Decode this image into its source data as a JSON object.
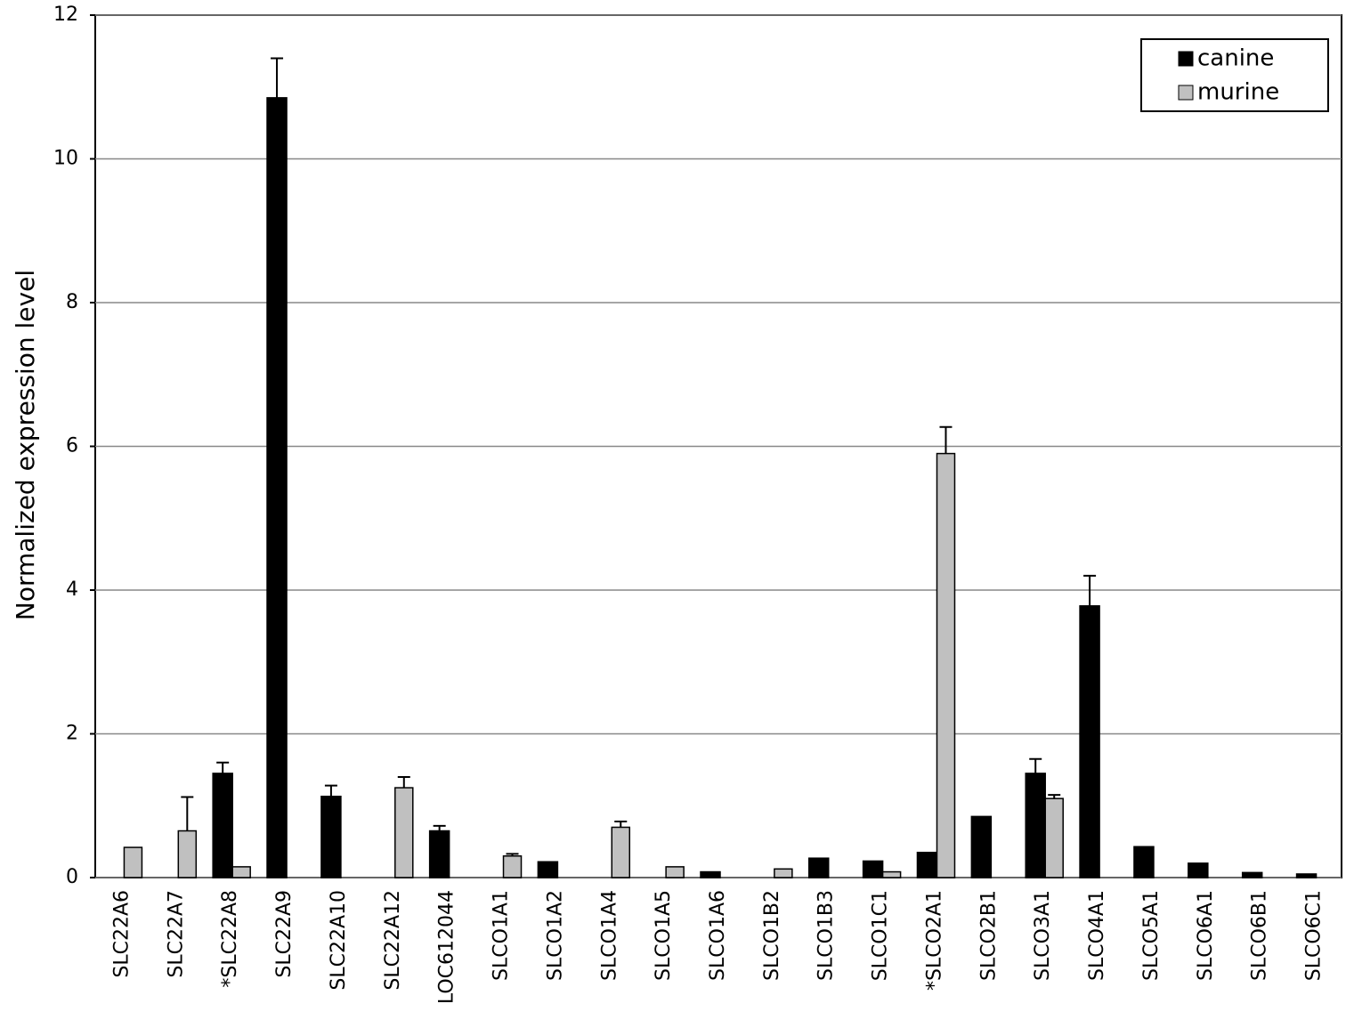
{
  "chart_data": {
    "type": "bar",
    "y_label": "Normalized  expression   level",
    "categories": [
      "SLC22A6",
      "SLC22A7",
      "*SLC22A8",
      "SLC22A9",
      "SLC22A10",
      "SLC22A12",
      "LOC612044",
      "SLCO1A1",
      "SLCO1A2",
      "SLCO1A4",
      "SLCO1A5",
      "SLCO1A6",
      "SLCO1B2",
      "SLCO1B3",
      "SLCO1C1",
      "*SLCO2A1",
      "SLCO2B1",
      "SLCO3A1",
      "SLCO4A1",
      "SLCO5A1",
      "SLCO6A1",
      "SLCO6B1",
      "SLCO6C1"
    ],
    "series": [
      {
        "name": "canine",
        "color": "#000000",
        "values": [
          null,
          null,
          1.45,
          10.85,
          1.13,
          null,
          0.65,
          null,
          0.22,
          null,
          null,
          0.08,
          null,
          0.27,
          0.23,
          0.35,
          0.85,
          1.45,
          3.78,
          0.43,
          0.2,
          0.07,
          0.05
        ],
        "errors": [
          null,
          null,
          0.15,
          0.55,
          0.15,
          null,
          0.07,
          null,
          null,
          null,
          null,
          null,
          null,
          null,
          null,
          null,
          null,
          0.2,
          0.42,
          null,
          null,
          null,
          null
        ]
      },
      {
        "name": "murine",
        "color": "#c0c0c0",
        "values": [
          0.42,
          0.65,
          0.15,
          null,
          null,
          1.25,
          null,
          0.3,
          null,
          0.7,
          0.15,
          null,
          0.12,
          null,
          0.08,
          5.9,
          null,
          1.1,
          null,
          null,
          null,
          null,
          null
        ],
        "errors": [
          null,
          0.47,
          null,
          null,
          null,
          0.15,
          null,
          0.03,
          null,
          0.08,
          null,
          null,
          null,
          null,
          null,
          0.37,
          null,
          0.05,
          null,
          null,
          null,
          null,
          null
        ]
      }
    ],
    "ylim": [
      0,
      12
    ],
    "yticks": [
      0,
      2,
      4,
      6,
      8,
      10,
      12
    ],
    "grid": true,
    "legend": "top-right"
  }
}
